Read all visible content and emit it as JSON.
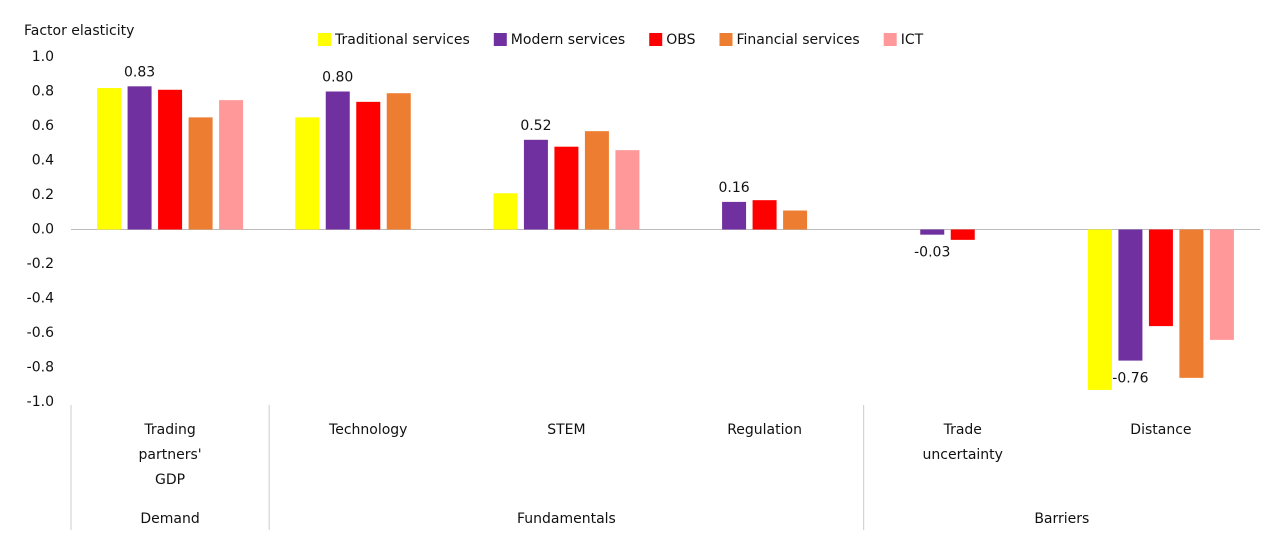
{
  "chart_data": {
    "type": "bar",
    "y_label": "Factor elasticity",
    "categories": [
      "Trading partners' GDP",
      "Technology",
      "STEM",
      "Regulation",
      "Trade uncertainty",
      "Distance"
    ],
    "groups": [
      "Demand",
      "Fundamentals",
      "Barriers"
    ],
    "series": [
      {
        "name": "Traditional services",
        "color": "#ffff00",
        "values": [
          0.82,
          0.65,
          0.21,
          null,
          null,
          -0.93
        ]
      },
      {
        "name": "Modern services",
        "color": "#7030a0",
        "values": [
          0.83,
          0.8,
          0.52,
          0.16,
          -0.03,
          -0.76
        ],
        "value_labels": [
          "0.83",
          "0.80",
          "0.52",
          "0.16",
          "-0.03",
          "-0.76"
        ]
      },
      {
        "name": "OBS",
        "color": "#ff0000",
        "values": [
          0.81,
          0.74,
          0.48,
          0.17,
          -0.06,
          -0.56
        ]
      },
      {
        "name": "Financial services",
        "color": "#ed7d31",
        "values": [
          0.65,
          0.79,
          0.57,
          0.11,
          null,
          -0.86
        ]
      },
      {
        "name": "ICT",
        "color": "#ff9999",
        "values": [
          0.75,
          null,
          0.46,
          null,
          null,
          -0.64
        ]
      }
    ],
    "ylim": [
      -1.0,
      1.0
    ],
    "yticks": [
      {
        "value": -1.0,
        "label": "-1.0"
      },
      -0.8,
      -0.6,
      -0.4,
      -0.2,
      {
        "value": 0,
        "label": "0.0"
      },
      0.2,
      0.4,
      0.6,
      0.8,
      {
        "value": 1.0,
        "label": "1.0"
      }
    ]
  }
}
